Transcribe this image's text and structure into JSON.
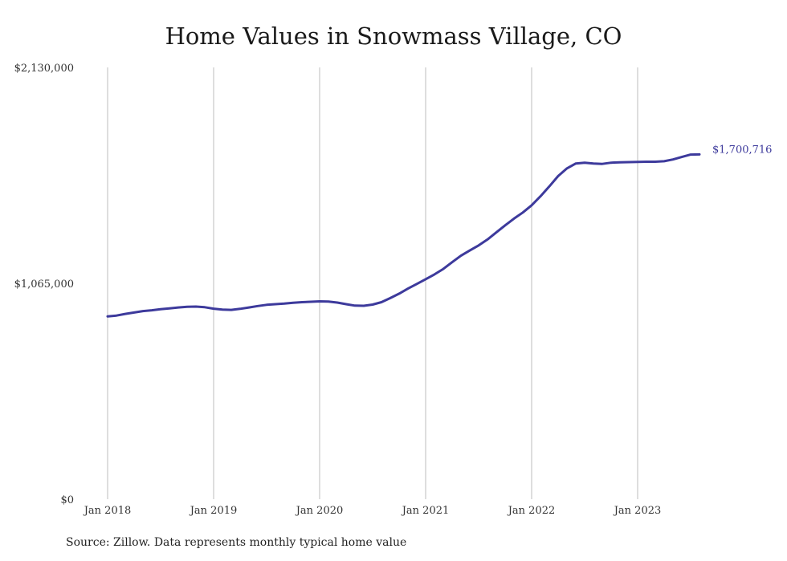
{
  "chart_data": {
    "type": "line",
    "title": "Home Values in Snowmass Village, CO",
    "xlabel": "",
    "ylabel": "",
    "ylim": [
      0,
      2130000
    ],
    "ytick_labels": [
      "$0",
      "$1,065,000",
      "$2,130,000"
    ],
    "yticks": [
      0,
      1065000,
      2130000
    ],
    "xtick_labels": [
      "Jan 2018",
      "Jan 2019",
      "Jan 2020",
      "Jan 2021",
      "Jan 2022",
      "Jan 2023"
    ],
    "grid": "vertical",
    "series": [
      {
        "color": "#3d3a9c",
        "end_label": "$1,700,716",
        "x": [
          "2018-01",
          "2018-02",
          "2018-03",
          "2018-04",
          "2018-05",
          "2018-06",
          "2018-07",
          "2018-08",
          "2018-09",
          "2018-10",
          "2018-11",
          "2018-12",
          "2019-01",
          "2019-02",
          "2019-03",
          "2019-04",
          "2019-05",
          "2019-06",
          "2019-07",
          "2019-08",
          "2019-09",
          "2019-10",
          "2019-11",
          "2019-12",
          "2020-01",
          "2020-02",
          "2020-03",
          "2020-04",
          "2020-05",
          "2020-06",
          "2020-07",
          "2020-08",
          "2020-09",
          "2020-10",
          "2020-11",
          "2020-12",
          "2021-01",
          "2021-02",
          "2021-03",
          "2021-04",
          "2021-05",
          "2021-06",
          "2021-07",
          "2021-08",
          "2021-09",
          "2021-10",
          "2021-11",
          "2021-12",
          "2022-01",
          "2022-02",
          "2022-03",
          "2022-04",
          "2022-05",
          "2022-06",
          "2022-07",
          "2022-08",
          "2022-09",
          "2022-10",
          "2022-11",
          "2022-12",
          "2023-01",
          "2023-02",
          "2023-03",
          "2023-04",
          "2023-05",
          "2023-06",
          "2023-07",
          "2023-08"
        ],
        "values": [
          902000,
          906000,
          914000,
          921000,
          928000,
          932000,
          937000,
          941000,
          946000,
          949000,
          950000,
          947000,
          940000,
          935000,
          934000,
          939000,
          946000,
          953000,
          959000,
          962000,
          965000,
          969000,
          972000,
          974000,
          976000,
          975000,
          970000,
          962000,
          955000,
          954000,
          960000,
          972000,
          992000,
          1014000,
          1039000,
          1062000,
          1085000,
          1109000,
          1136000,
          1169000,
          1201000,
          1227000,
          1252000,
          1281000,
          1316000,
          1351000,
          1384000,
          1414000,
          1450000,
          1494000,
          1543000,
          1594000,
          1632000,
          1656000,
          1660000,
          1656000,
          1654000,
          1660000,
          1662000,
          1663000,
          1664000,
          1665000,
          1665000,
          1667000,
          1676000,
          1688000,
          1700000,
          1700716
        ]
      }
    ]
  },
  "source_text": "Source: Zillow. Data represents monthly typical home value"
}
